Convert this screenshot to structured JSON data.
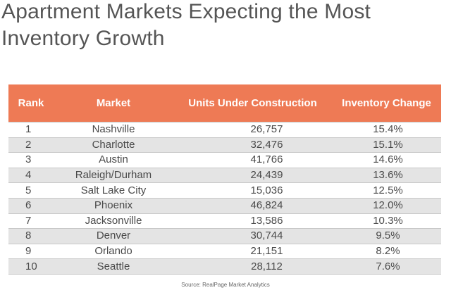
{
  "title": "Apartment Markets Expecting the Most Inventory Growth",
  "table": {
    "headers": [
      "Rank",
      "Market",
      "Units Under Construction",
      "Inventory Change"
    ],
    "rows": [
      {
        "rank": "1",
        "market": "Nashville",
        "units": "26,757",
        "change": "15.4%"
      },
      {
        "rank": "2",
        "market": "Charlotte",
        "units": "32,476",
        "change": "15.1%"
      },
      {
        "rank": "3",
        "market": "Austin",
        "units": "41,766",
        "change": "14.6%"
      },
      {
        "rank": "4",
        "market": "Raleigh/Durham",
        "units": "24,439",
        "change": "13.6%"
      },
      {
        "rank": "5",
        "market": "Salt Lake City",
        "units": "15,036",
        "change": "12.5%"
      },
      {
        "rank": "6",
        "market": "Phoenix",
        "units": "46,824",
        "change": "12.0%"
      },
      {
        "rank": "7",
        "market": "Jacksonville",
        "units": "13,586",
        "change": "10.3%"
      },
      {
        "rank": "8",
        "market": "Denver",
        "units": "30,744",
        "change": "9.5%"
      },
      {
        "rank": "9",
        "market": "Orlando",
        "units": "21,151",
        "change": "8.2%"
      },
      {
        "rank": "10",
        "market": "Seattle",
        "units": "28,112",
        "change": "7.6%"
      }
    ]
  },
  "source": "Source: RealPage Market Analytics",
  "colors": {
    "header_bg": "#ee7a55",
    "header_text": "#ffffff",
    "stripe": "#e4e4e4"
  }
}
